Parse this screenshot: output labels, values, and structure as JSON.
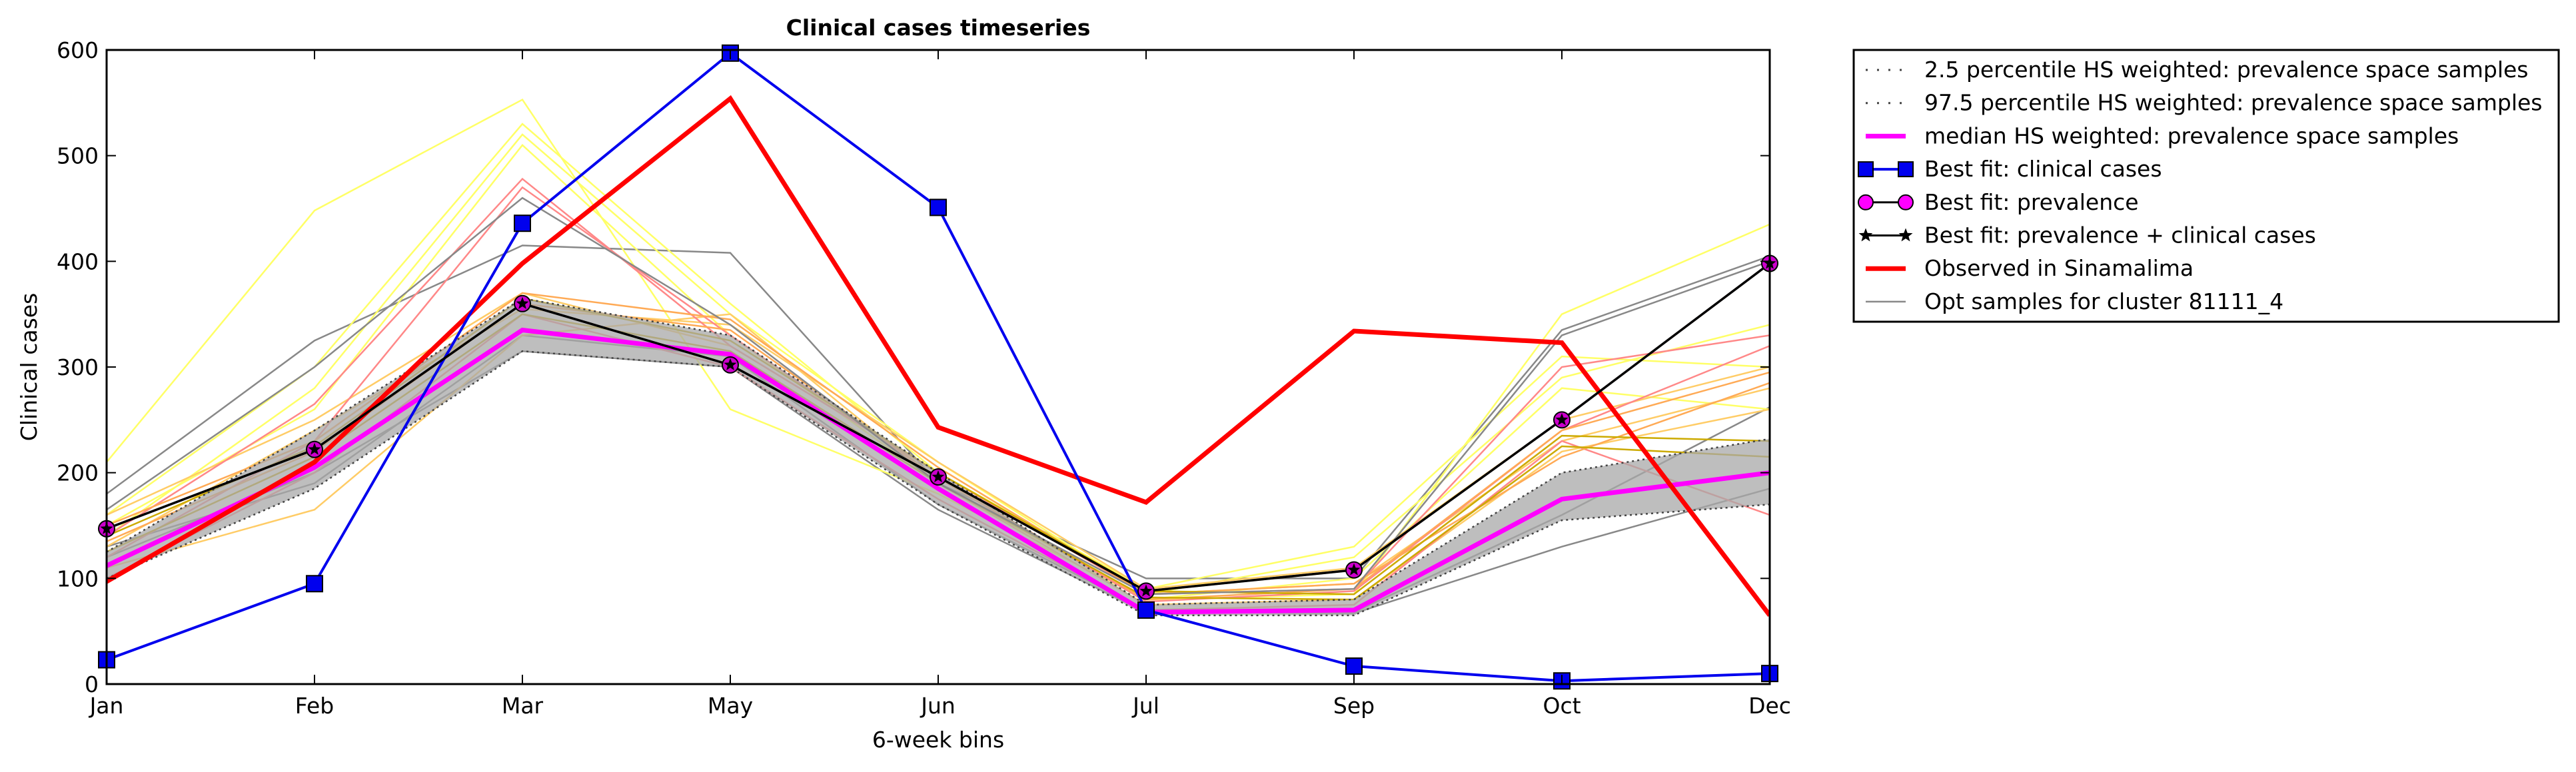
{
  "chart_data": {
    "type": "line",
    "title": "Clinical cases timeseries",
    "xlabel": "6-week bins",
    "ylabel": "Clinical cases",
    "categories": [
      "Jan",
      "Feb",
      "Mar",
      "May",
      "Jun",
      "Jul",
      "Sep",
      "Oct",
      "Dec"
    ],
    "ylim": [
      0,
      600
    ],
    "yticks": [
      "0",
      "100",
      "200",
      "300",
      "400",
      "500",
      "600"
    ],
    "grid": false,
    "legend_position": "outside-top-right",
    "series": [
      {
        "name": "2.5 percentile HS weighted: prevalence space samples",
        "style": "dotted",
        "color": "#555555",
        "values": [
          100,
          185,
          315,
          300,
          170,
          65,
          65,
          155,
          170
        ]
      },
      {
        "name": "97.5 percentile HS weighted: prevalence space samples",
        "style": "dotted",
        "color": "#555555",
        "values": [
          125,
          240,
          365,
          330,
          200,
          75,
          80,
          200,
          232
        ]
      },
      {
        "name": "median HS weighted: prevalence space samples",
        "style": "solid",
        "color": "#ff00ff",
        "values": [
          112,
          205,
          335,
          312,
          185,
          68,
          70,
          175,
          200
        ]
      },
      {
        "name": "Best fit: clinical cases",
        "style": "solid",
        "color": "#0000ee",
        "marker": "square",
        "values": [
          23,
          95,
          436,
          597,
          451,
          70,
          17,
          3,
          10
        ]
      },
      {
        "name": "Best fit: prevalence",
        "style": "solid",
        "color": "#800000",
        "marker": "circle",
        "values": [
          147,
          222,
          360,
          302,
          196,
          88,
          108,
          250,
          398
        ]
      },
      {
        "name": "Best fit: prevalence + clinical cases",
        "style": "solid",
        "color": "#000000",
        "marker": "star",
        "values": [
          147,
          222,
          360,
          302,
          196,
          88,
          108,
          250,
          398
        ]
      },
      {
        "name": "Observed in Sinamalima",
        "style": "solid",
        "color": "#ff0000",
        "values": [
          97,
          210,
          398,
          554,
          243,
          172,
          334,
          323,
          65
        ]
      },
      {
        "name": "Opt samples for cluster 81111_4",
        "style": "solid",
        "color": "#888888",
        "values": [
          165,
          300,
          460,
          340,
          190,
          85,
          90,
          330,
          400
        ]
      }
    ],
    "background_samples": [
      {
        "color": "#888888",
        "values": [
          180,
          325,
          415,
          408,
          190,
          100,
          100,
          335,
          405
        ]
      },
      {
        "color": "#888888",
        "values": [
          120,
          200,
          315,
          300,
          165,
          68,
          67,
          130,
          185
        ]
      },
      {
        "color": "#888888",
        "values": [
          130,
          190,
          330,
          310,
          170,
          70,
          68,
          160,
          262
        ]
      },
      {
        "color": "#ffff66",
        "values": [
          210,
          448,
          553,
          260,
          180,
          80,
          85,
          350,
          435
        ]
      },
      {
        "color": "#ffff66",
        "values": [
          160,
          300,
          530,
          360,
          200,
          90,
          130,
          310,
          300
        ]
      },
      {
        "color": "#ffff66",
        "values": [
          140,
          280,
          520,
          350,
          210,
          85,
          120,
          290,
          340
        ]
      },
      {
        "color": "#ffff66",
        "values": [
          150,
          260,
          510,
          330,
          190,
          80,
          100,
          280,
          260
        ]
      },
      {
        "color": "#ffcc66",
        "values": [
          160,
          250,
          370,
          320,
          200,
          85,
          95,
          230,
          280
        ]
      },
      {
        "color": "#ffcc66",
        "values": [
          130,
          240,
          355,
          340,
          210,
          90,
          110,
          250,
          300
        ]
      },
      {
        "color": "#ffcc66",
        "values": [
          110,
          165,
          330,
          350,
          190,
          75,
          80,
          220,
          260
        ]
      },
      {
        "color": "#ff8888",
        "values": [
          140,
          265,
          478,
          320,
          200,
          85,
          90,
          300,
          330
        ]
      },
      {
        "color": "#ff8888",
        "values": [
          120,
          230,
          470,
          330,
          195,
          78,
          88,
          240,
          320
        ]
      },
      {
        "color": "#ff8888",
        "values": [
          100,
          200,
          350,
          300,
          175,
          70,
          75,
          230,
          160
        ]
      },
      {
        "color": "#ffaa55",
        "values": [
          150,
          230,
          370,
          345,
          205,
          85,
          95,
          215,
          285
        ]
      },
      {
        "color": "#ffaa55",
        "values": [
          135,
          220,
          360,
          335,
          195,
          80,
          90,
          240,
          295
        ]
      },
      {
        "color": "#ccaa00",
        "values": [
          140,
          225,
          365,
          325,
          200,
          88,
          85,
          235,
          230
        ]
      },
      {
        "color": "#ccaa00",
        "values": [
          125,
          215,
          350,
          315,
          190,
          82,
          80,
          225,
          215
        ]
      }
    ]
  }
}
